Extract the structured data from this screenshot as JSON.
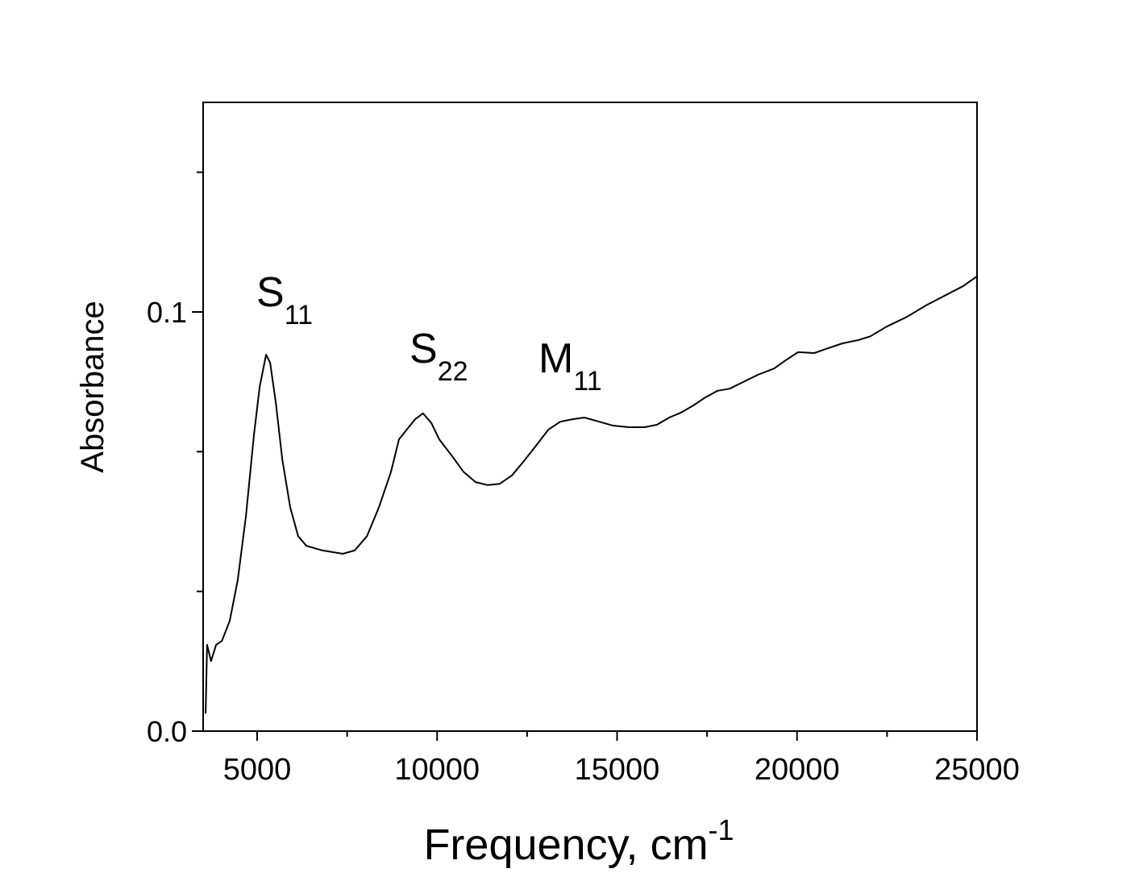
{
  "chart_data": {
    "type": "line",
    "x_label": "Frequency, cm",
    "x_label_superscript": "-1",
    "y_label": "Absorbance",
    "annotations": [
      {
        "text": "S",
        "subscript": "11"
      },
      {
        "text": "S",
        "subscript": "22"
      },
      {
        "text": "M",
        "subscript": "11"
      }
    ],
    "x": [
      3570,
      3610,
      3720,
      3860,
      4020,
      4240,
      4460,
      4690,
      4910,
      5070,
      5250,
      5360,
      5520,
      5700,
      5920,
      6140,
      6370,
      6820,
      7380,
      7710,
      8050,
      8380,
      8720,
      8940,
      9170,
      9390,
      9610,
      9840,
      10060,
      10400,
      10730,
      11070,
      11410,
      11740,
      12080,
      12410,
      12750,
      13090,
      13420,
      13760,
      14090,
      14430,
      14880,
      15330,
      15770,
      16110,
      16450,
      16780,
      17120,
      17450,
      17790,
      18130,
      18460,
      18910,
      19360,
      19690,
      20030,
      20480,
      20810,
      21260,
      21710,
      22040,
      22490,
      23050,
      23610,
      24170,
      24620,
      25000
    ],
    "values": [
      0.0042,
      0.0206,
      0.0167,
      0.0206,
      0.0215,
      0.0263,
      0.036,
      0.0513,
      0.0706,
      0.0821,
      0.0898,
      0.0879,
      0.0783,
      0.0648,
      0.0533,
      0.0465,
      0.0442,
      0.0431,
      0.0423,
      0.0431,
      0.0465,
      0.0533,
      0.0619,
      0.0696,
      0.0721,
      0.0744,
      0.0758,
      0.0735,
      0.0696,
      0.0658,
      0.0619,
      0.0594,
      0.0587,
      0.059,
      0.061,
      0.0644,
      0.0681,
      0.0719,
      0.0738,
      0.0744,
      0.0748,
      0.074,
      0.0729,
      0.0725,
      0.0725,
      0.0731,
      0.0748,
      0.076,
      0.0777,
      0.0796,
      0.0812,
      0.0817,
      0.0831,
      0.085,
      0.0865,
      0.0885,
      0.0904,
      0.0902,
      0.0912,
      0.0925,
      0.0933,
      0.0942,
      0.0965,
      0.0988,
      0.1017,
      0.1042,
      0.1062,
      0.1085
    ],
    "color": "#000000",
    "xlim": [
      3500,
      25000
    ],
    "xticks": [
      5000,
      10000,
      15000,
      20000,
      25000
    ],
    "ylim": [
      0,
      0.15
    ],
    "yticks": [
      {
        "value": 0,
        "label": "0.0"
      },
      0.1
    ],
    "grid": false
  }
}
